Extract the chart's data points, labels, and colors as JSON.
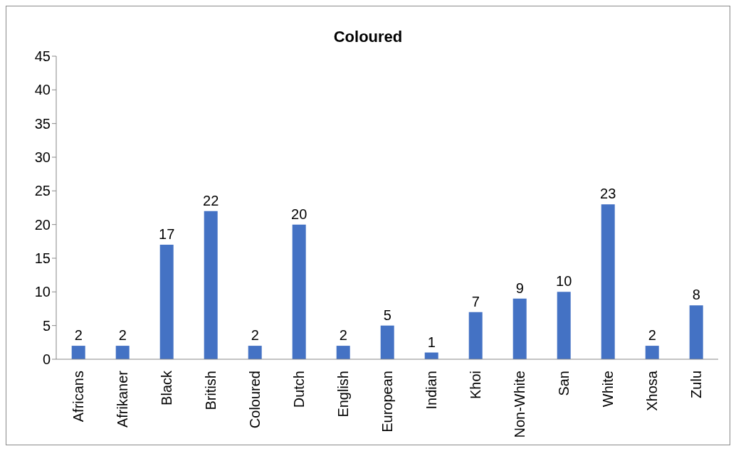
{
  "chart_data": {
    "type": "bar",
    "title": "Coloured",
    "categories": [
      "Africans",
      "Afrikaner",
      "Black",
      "British",
      "Coloured",
      "Dutch",
      "English",
      "European",
      "Indian",
      "Khoi",
      "Non-White",
      "San",
      "White",
      "Xhosa",
      "Zulu"
    ],
    "values": [
      2,
      2,
      17,
      22,
      2,
      20,
      2,
      5,
      1,
      7,
      9,
      10,
      23,
      2,
      8
    ],
    "color": "#4472c4",
    "ylim": [
      0,
      45
    ],
    "yticks": [
      0,
      5,
      10,
      15,
      20,
      25,
      30,
      35,
      40,
      45
    ],
    "data_labels": true
  }
}
